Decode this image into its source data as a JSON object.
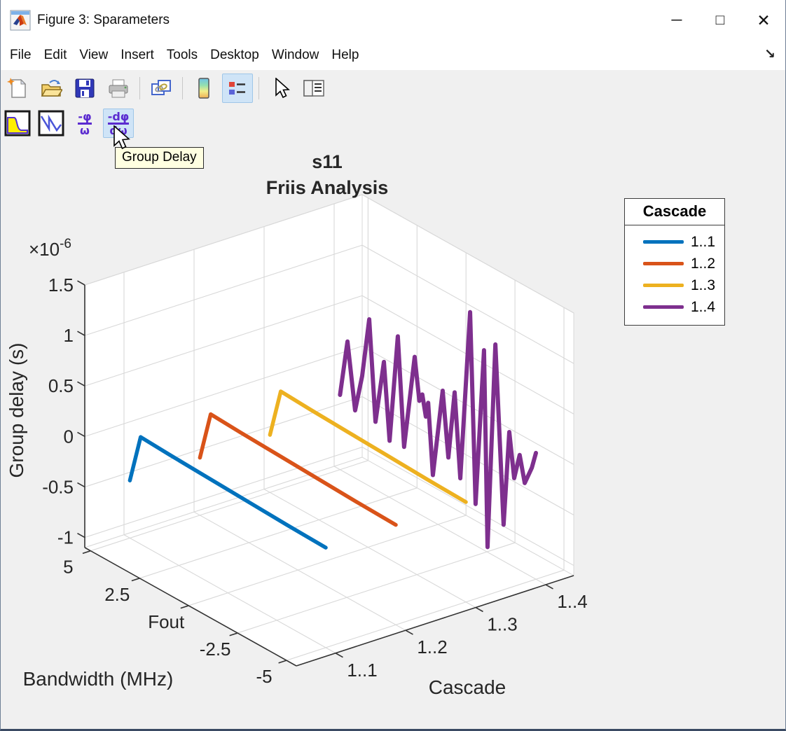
{
  "window": {
    "title": "Figure 3: Sparameters",
    "controls": {
      "minimize": "─",
      "maximize": "□",
      "close": "✕"
    }
  },
  "menus": [
    "File",
    "Edit",
    "View",
    "Insert",
    "Tools",
    "Desktop",
    "Window",
    "Help"
  ],
  "dock_arrow_glyph": "↘",
  "toolbars": {
    "main": {
      "buttons": [
        "new-figure",
        "open-file",
        "save-figure",
        "print-figure",
        "link-plot",
        "insert-colorbar",
        "insert-legend",
        "edit-plot",
        "property-inspector"
      ],
      "active": "insert-legend"
    },
    "sparams": {
      "buttons": [
        "magnitude",
        "angle",
        "phase-delay",
        "group-delay"
      ],
      "active": "group-delay",
      "hovered": "group-delay",
      "glyphs": {
        "phase_delay_top": "-φ",
        "phase_delay_bottom": "ω",
        "group_delay_top": "-dφ",
        "group_delay_bottom": "dω"
      }
    }
  },
  "tooltip": {
    "text": "Group Delay"
  },
  "chart_data": {
    "type": "line",
    "projection": "3d",
    "title_lines": [
      "s11",
      "Friis Analysis"
    ],
    "xlabel": "Cascade",
    "ylabel": "Bandwidth (MHz)",
    "zlabel": "Group delay (s)",
    "z_exponent": {
      "base": "×10",
      "power": "-6"
    },
    "x_tick_values": [
      1,
      2,
      3,
      4
    ],
    "x_tick_labels": [
      "1..1",
      "1..2",
      "1..3",
      "1..4"
    ],
    "y_tick_values": [
      5,
      2.5,
      0,
      -2.5,
      -5
    ],
    "y_tick_labels": [
      "5",
      "2.5",
      "Fout",
      "-2.5",
      "-5"
    ],
    "z_tick_values": [
      -1,
      -0.5,
      0,
      0.5,
      1,
      1.5
    ],
    "z_tick_labels": [
      "-1",
      "-0.5",
      "0",
      "0.5",
      "1",
      "1.5"
    ],
    "xlim": [
      0.44,
      4.4
    ],
    "ylim": [
      -5.5,
      5.3
    ],
    "zlim": [
      -1.1,
      1.5
    ],
    "z_units": "1e-6 s",
    "grid": true,
    "legend": {
      "title": "Cascade",
      "position": "upper-right"
    },
    "series": [
      {
        "name": "1..1",
        "color": "#0072BD",
        "cascade": 1,
        "bandwidth_mhz": [
          5,
          4.45,
          3,
          1,
          -1,
          -3,
          -5
        ],
        "group_delay_us": [
          -0.53,
          -0.04,
          -0.055,
          -0.07,
          -0.085,
          -0.1,
          -0.11
        ]
      },
      {
        "name": "1..2",
        "color": "#D95319",
        "cascade": 2,
        "bandwidth_mhz": [
          5,
          4.45,
          3,
          1,
          -1,
          -3,
          -5
        ],
        "group_delay_us": [
          -0.53,
          -0.04,
          -0.055,
          -0.07,
          -0.085,
          -0.1,
          -0.11
        ]
      },
      {
        "name": "1..3",
        "color": "#EDB120",
        "cascade": 3,
        "bandwidth_mhz": [
          5,
          4.45,
          3,
          1,
          -1,
          -3,
          -5
        ],
        "group_delay_us": [
          -0.53,
          -0.04,
          -0.055,
          -0.07,
          -0.085,
          -0.1,
          -0.11
        ]
      },
      {
        "name": "1..4",
        "color": "#7E2F8E",
        "cascade": 4,
        "bandwidth_mhz": [
          5,
          4.62,
          4.23,
          3.87,
          3.51,
          3.19,
          2.76,
          2.47,
          2.05,
          1.73,
          1.19,
          0.95,
          0.8,
          0.62,
          0.5,
          0.26,
          -0.24,
          -0.53,
          -0.85,
          -1.14,
          -1.64,
          -1.92,
          -2.35,
          -2.53,
          -2.93,
          -3.35,
          -3.64,
          -3.89,
          -4.17,
          -4.43,
          -4.79,
          -5
        ],
        "group_delay_us": [
          -0.36,
          0.21,
          -0.43,
          -0.05,
          0.55,
          -0.43,
          0.21,
          -0.54,
          0.54,
          -0.52,
          0.43,
          0.02,
          0.1,
          -0.1,
          0.05,
          -0.64,
          0.25,
          -0.38,
          0.3,
          -0.52,
          1.18,
          -0.69,
          0.88,
          -1.05,
          1,
          -0.74,
          0.21,
          -0.22,
          0.04,
          -0.21,
          -0.02,
          0.15
        ]
      }
    ]
  }
}
